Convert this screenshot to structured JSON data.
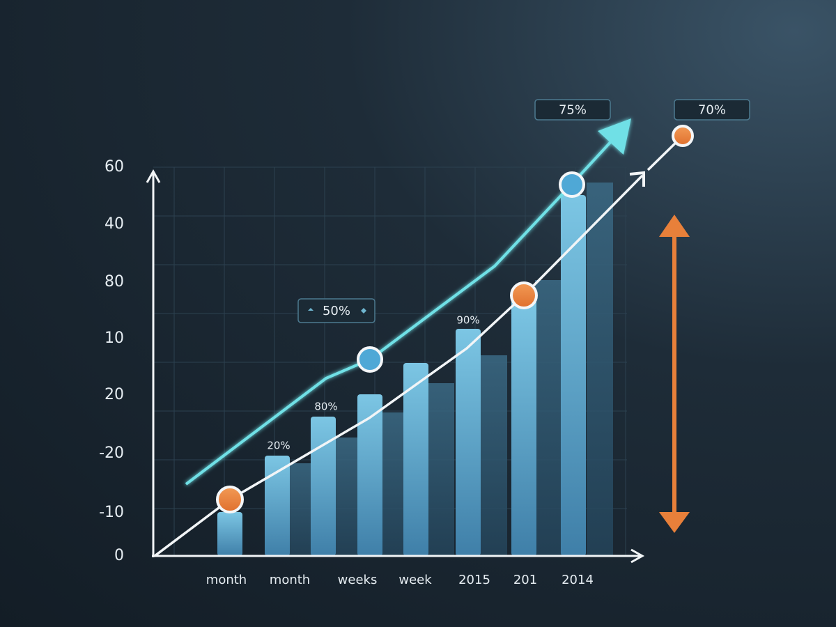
{
  "y_axis_labels": [
    "60",
    "40",
    "80",
    "10",
    "20",
    "-20",
    "-10",
    "0"
  ],
  "x_axis_labels": [
    "month",
    "month",
    "weeks",
    "week",
    "2015",
    "201",
    "2014"
  ],
  "callouts": {
    "top_left": "75%",
    "top_right": "70%",
    "middle": "50%",
    "bar_high": "90%",
    "bar_mid": "80%",
    "bar_low": "20%"
  }
}
